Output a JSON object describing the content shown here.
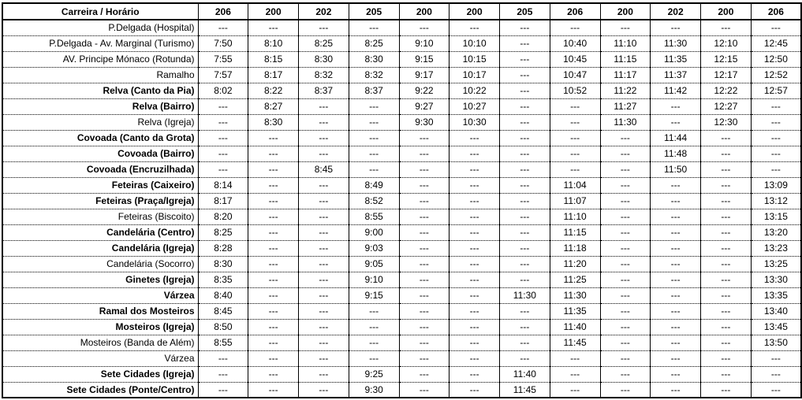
{
  "table": {
    "header_label": "Carreira / Horário",
    "routes": [
      "206",
      "200",
      "202",
      "205",
      "200",
      "200",
      "205",
      "206",
      "200",
      "202",
      "200",
      "206"
    ],
    "rows": [
      {
        "stop": "P.Delgada (Hospital)",
        "bold": false,
        "times": [
          "---",
          "---",
          "---",
          "---",
          "---",
          "---",
          "---",
          "---",
          "---",
          "---",
          "---",
          "---"
        ]
      },
      {
        "stop": "P.Delgada - Av. Marginal (Turismo)",
        "bold": false,
        "times": [
          "7:50",
          "8:10",
          "8:25",
          "8:25",
          "9:10",
          "10:10",
          "---",
          "10:40",
          "11:10",
          "11:30",
          "12:10",
          "12:45"
        ]
      },
      {
        "stop": "AV. Principe Mónaco (Rotunda)",
        "bold": false,
        "times": [
          "7:55",
          "8:15",
          "8:30",
          "8:30",
          "9:15",
          "10:15",
          "---",
          "10:45",
          "11:15",
          "11:35",
          "12:15",
          "12:50"
        ]
      },
      {
        "stop": "Ramalho",
        "bold": false,
        "times": [
          "7:57",
          "8:17",
          "8:32",
          "8:32",
          "9:17",
          "10:17",
          "---",
          "10:47",
          "11:17",
          "11:37",
          "12:17",
          "12:52"
        ]
      },
      {
        "stop": "Relva (Canto da Pia)",
        "bold": true,
        "times": [
          "8:02",
          "8:22",
          "8:37",
          "8:37",
          "9:22",
          "10:22",
          "---",
          "10:52",
          "11:22",
          "11:42",
          "12:22",
          "12:57"
        ]
      },
      {
        "stop": "Relva (Bairro)",
        "bold": true,
        "times": [
          "---",
          "8:27",
          "---",
          "---",
          "9:27",
          "10:27",
          "---",
          "---",
          "11:27",
          "---",
          "12:27",
          "---"
        ]
      },
      {
        "stop": "Relva (Igreja)",
        "bold": false,
        "times": [
          "---",
          "8:30",
          "---",
          "---",
          "9:30",
          "10:30",
          "---",
          "---",
          "11:30",
          "---",
          "12:30",
          "---"
        ]
      },
      {
        "stop": "Covoada (Canto da Grota)",
        "bold": true,
        "times": [
          "---",
          "---",
          "---",
          "---",
          "---",
          "---",
          "---",
          "---",
          "---",
          "11:44",
          "---",
          "---"
        ]
      },
      {
        "stop": "Covoada (Bairro)",
        "bold": true,
        "times": [
          "---",
          "---",
          "---",
          "---",
          "---",
          "---",
          "---",
          "---",
          "---",
          "11:48",
          "---",
          "---"
        ]
      },
      {
        "stop": "Covoada (Encruzilhada)",
        "bold": true,
        "times": [
          "---",
          "---",
          "8:45",
          "---",
          "---",
          "---",
          "---",
          "---",
          "---",
          "11:50",
          "---",
          "---"
        ]
      },
      {
        "stop": "Feteiras (Caixeiro)",
        "bold": true,
        "times": [
          "8:14",
          "---",
          "---",
          "8:49",
          "---",
          "---",
          "---",
          "11:04",
          "---",
          "---",
          "---",
          "13:09"
        ]
      },
      {
        "stop": "Feteiras (Praça/Igreja)",
        "bold": true,
        "times": [
          "8:17",
          "---",
          "---",
          "8:52",
          "---",
          "---",
          "---",
          "11:07",
          "---",
          "---",
          "---",
          "13:12"
        ]
      },
      {
        "stop": "Feteiras (Biscoito)",
        "bold": false,
        "times": [
          "8:20",
          "---",
          "---",
          "8:55",
          "---",
          "---",
          "---",
          "11:10",
          "---",
          "---",
          "---",
          "13:15"
        ]
      },
      {
        "stop": "Candelária (Centro)",
        "bold": true,
        "times": [
          "8:25",
          "---",
          "---",
          "9:00",
          "---",
          "---",
          "---",
          "11:15",
          "---",
          "---",
          "---",
          "13:20"
        ]
      },
      {
        "stop": "Candelária (Igreja)",
        "bold": true,
        "times": [
          "8:28",
          "---",
          "---",
          "9:03",
          "---",
          "---",
          "---",
          "11:18",
          "---",
          "---",
          "---",
          "13:23"
        ]
      },
      {
        "stop": "Candelária (Socorro)",
        "bold": false,
        "times": [
          "8:30",
          "---",
          "---",
          "9:05",
          "---",
          "---",
          "---",
          "11:20",
          "---",
          "---",
          "---",
          "13:25"
        ]
      },
      {
        "stop": "Ginetes (Igreja)",
        "bold": true,
        "times": [
          "8:35",
          "---",
          "---",
          "9:10",
          "---",
          "---",
          "---",
          "11:25",
          "---",
          "---",
          "---",
          "13:30"
        ]
      },
      {
        "stop": "Várzea",
        "bold": true,
        "times": [
          "8:40",
          "---",
          "---",
          "9:15",
          "---",
          "---",
          "11:30",
          "11:30",
          "---",
          "---",
          "---",
          "13:35"
        ]
      },
      {
        "stop": "Ramal dos Mosteiros",
        "bold": true,
        "times": [
          "8:45",
          "---",
          "---",
          "---",
          "---",
          "---",
          "---",
          "11:35",
          "---",
          "---",
          "---",
          "13:40"
        ]
      },
      {
        "stop": "Mosteiros (Igreja)",
        "bold": true,
        "times": [
          "8:50",
          "---",
          "---",
          "---",
          "---",
          "---",
          "---",
          "11:40",
          "---",
          "---",
          "---",
          "13:45"
        ]
      },
      {
        "stop": "Mosteiros (Banda de Além)",
        "bold": false,
        "times": [
          "8:55",
          "---",
          "---",
          "---",
          "---",
          "---",
          "---",
          "11:45",
          "---",
          "---",
          "---",
          "13:50"
        ]
      },
      {
        "stop": "Várzea",
        "bold": false,
        "times": [
          "---",
          "---",
          "---",
          "---",
          "---",
          "---",
          "---",
          "---",
          "---",
          "---",
          "---",
          "---"
        ]
      },
      {
        "stop": "Sete Cidades (Igreja)",
        "bold": true,
        "times": [
          "---",
          "---",
          "---",
          "9:25",
          "---",
          "---",
          "11:40",
          "---",
          "---",
          "---",
          "---",
          "---"
        ]
      },
      {
        "stop": "Sete Cidades (Ponte/Centro)",
        "bold": true,
        "times": [
          "---",
          "---",
          "---",
          "9:30",
          "---",
          "---",
          "11:45",
          "---",
          "---",
          "---",
          "---",
          "---"
        ]
      }
    ]
  }
}
